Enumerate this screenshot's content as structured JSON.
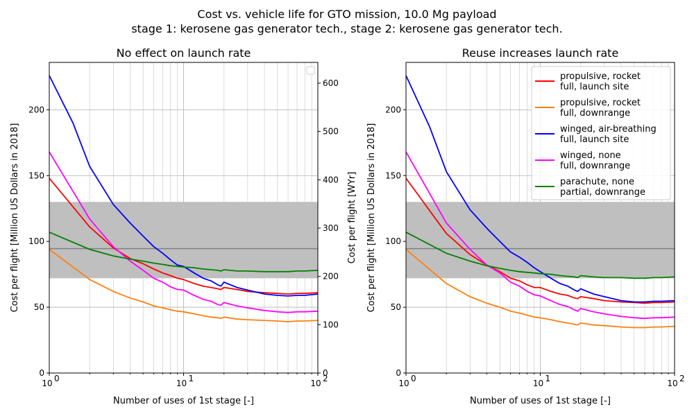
{
  "figure": {
    "title_line1": "Cost vs. vehicle life for GTO mission, 10.0 Mg payload",
    "title_line2": "stage 1: kerosene gas generator tech., stage 2: kerosene gas generator tech."
  },
  "chart_data": [
    {
      "type": "line",
      "title": "No effect on launch rate",
      "xlabel": "Number of uses of 1st stage [-]",
      "ylabel": "Cost per flight [Million US Dollars in 2018]",
      "y2label": "Cost per flight [WYr]",
      "xscale": "log",
      "xlim": [
        1,
        100
      ],
      "ylim": [
        0,
        236
      ],
      "y2lim": [
        0,
        643
      ],
      "yticks": [
        0,
        50,
        100,
        150,
        200
      ],
      "y2ticks": [
        0,
        100,
        200,
        300,
        400,
        500,
        600
      ],
      "xticklabels": [
        "10^0",
        "10^1",
        "10^2"
      ],
      "grid": true,
      "band": {
        "low": 72,
        "high": 130,
        "color": "#bfbfbf"
      },
      "hline": {
        "y": 94.5,
        "color": "#808080"
      },
      "legend": "top-right-empty",
      "series": [
        {
          "color": "#ff0000",
          "x": [
            1,
            2,
            3,
            4,
            5,
            6,
            7,
            8,
            9,
            10,
            12,
            14,
            16,
            18,
            19,
            20,
            25,
            30,
            40,
            50,
            60,
            70,
            80,
            100
          ],
          "y": [
            148,
            111,
            95,
            87,
            83,
            79,
            76,
            74,
            72,
            71,
            68,
            66,
            65,
            64,
            63.5,
            65,
            63.5,
            62,
            61,
            60.5,
            60,
            60.5,
            60.5,
            61
          ]
        },
        {
          "color": "#ff7f0e",
          "x": [
            1,
            2,
            3,
            4,
            5,
            6,
            7,
            8,
            9,
            10,
            12,
            14,
            16,
            18,
            19,
            20,
            25,
            30,
            40,
            50,
            60,
            70,
            80,
            100
          ],
          "y": [
            94,
            71,
            62,
            57,
            54,
            51,
            49.5,
            48,
            47,
            46.5,
            45,
            43.5,
            42.5,
            42,
            41.5,
            42.5,
            41,
            40.5,
            40,
            39.5,
            39,
            39.5,
            39.5,
            40
          ]
        },
        {
          "color": "#0000ff",
          "x": [
            1,
            1.5,
            2,
            3,
            4,
            5,
            6,
            7,
            8,
            9,
            10,
            12,
            14,
            16,
            18,
            19,
            20,
            25,
            30,
            40,
            50,
            60,
            70,
            80,
            100
          ],
          "y": [
            226,
            190,
            157,
            128,
            114,
            104,
            96,
            91,
            86,
            82,
            81,
            76,
            72,
            70,
            67,
            66,
            69,
            65,
            63,
            60,
            59,
            58.5,
            59,
            59,
            60
          ]
        },
        {
          "color": "#ff00ff",
          "x": [
            1,
            2,
            3,
            4,
            5,
            6,
            7,
            8,
            9,
            10,
            12,
            14,
            16,
            18,
            19,
            20,
            25,
            30,
            40,
            50,
            60,
            70,
            80,
            100
          ],
          "y": [
            168,
            117,
            96,
            85,
            78,
            72,
            69,
            65.5,
            63.5,
            63,
            59,
            56,
            54.5,
            52,
            51.5,
            53.5,
            51,
            49.5,
            47.5,
            46.5,
            46,
            46.5,
            46.5,
            47
          ]
        },
        {
          "color": "#008000",
          "x": [
            1,
            2,
            3,
            4,
            5,
            6,
            7,
            8,
            9,
            10,
            12,
            14,
            16,
            18,
            19,
            20,
            25,
            30,
            40,
            50,
            60,
            70,
            80,
            100
          ],
          "y": [
            107,
            94,
            89,
            86.5,
            85,
            83.5,
            82.5,
            81.5,
            81,
            80.5,
            80,
            79,
            78.5,
            78,
            77.5,
            78.5,
            77.5,
            77.5,
            77,
            77,
            77,
            77.5,
            77.5,
            78
          ]
        }
      ]
    },
    {
      "type": "line",
      "title": "Reuse increases launch rate",
      "xlabel": "Number of uses of 1st stage [-]",
      "ylabel": "Cost per flight [Million US Dollars in 2018]",
      "xscale": "log",
      "xlim": [
        1,
        100
      ],
      "ylim": [
        0,
        236
      ],
      "yticks": [
        0,
        50,
        100,
        150,
        200
      ],
      "xticklabels": [
        "10^0",
        "10^1",
        "10^2"
      ],
      "grid": true,
      "band": {
        "low": 72,
        "high": 130,
        "color": "#bfbfbf"
      },
      "hline": {
        "y": 94.5,
        "color": "#808080"
      },
      "legend": "top-right",
      "series": [
        {
          "name": "propulsive, rocket\nfull, launch site",
          "color": "#ff0000",
          "x": [
            1,
            2,
            3,
            4,
            5,
            6,
            7,
            8,
            9,
            10,
            12,
            14,
            16,
            18,
            19,
            20,
            25,
            30,
            40,
            50,
            60,
            70,
            80,
            100
          ],
          "y": [
            148,
            106,
            90,
            82,
            77,
            72,
            70,
            67,
            65,
            65,
            62,
            60,
            59,
            57,
            56.5,
            58,
            56.5,
            55,
            54,
            53.5,
            53,
            53.5,
            53.5,
            54
          ]
        },
        {
          "name": "propulsive, rocket\nfull, downrange",
          "color": "#ff7f0e",
          "x": [
            1,
            2,
            3,
            4,
            5,
            6,
            7,
            8,
            9,
            10,
            12,
            14,
            16,
            18,
            19,
            20,
            25,
            30,
            40,
            50,
            60,
            70,
            80,
            100
          ],
          "y": [
            94,
            68,
            58,
            53,
            50,
            47,
            45.5,
            44,
            42.5,
            42,
            40.5,
            39,
            38,
            37,
            36.5,
            38,
            36.5,
            36,
            35,
            34.5,
            34.5,
            35,
            35,
            35.5
          ]
        },
        {
          "name": "winged, air-breathing\nfull, launch site",
          "color": "#0000ff",
          "x": [
            1,
            1.5,
            2,
            3,
            4,
            5,
            6,
            7,
            8,
            9,
            10,
            12,
            14,
            16,
            18,
            19,
            20,
            25,
            30,
            40,
            50,
            60,
            70,
            80,
            100
          ],
          "y": [
            226,
            187,
            153,
            124,
            110,
            100,
            92,
            88,
            84,
            80,
            77,
            72,
            68,
            66,
            63,
            62,
            64,
            60,
            58,
            55,
            54,
            54,
            54.5,
            54.5,
            55
          ]
        },
        {
          "name": "winged, none\nfull, downrange",
          "color": "#ff00ff",
          "x": [
            1,
            2,
            3,
            4,
            5,
            6,
            7,
            8,
            9,
            10,
            12,
            14,
            16,
            18,
            19,
            20,
            25,
            30,
            40,
            50,
            60,
            70,
            80,
            100
          ],
          "y": [
            168,
            114,
            94,
            82,
            76,
            69,
            66,
            62,
            59.5,
            58.5,
            55,
            52,
            50.5,
            48,
            47,
            49,
            46.5,
            45,
            43,
            42,
            41.5,
            42,
            42,
            42.5
          ]
        },
        {
          "name": "parachute, none\npartial, downrange",
          "color": "#008000",
          "x": [
            1,
            2,
            3,
            4,
            5,
            6,
            7,
            8,
            9,
            10,
            12,
            14,
            16,
            18,
            19,
            20,
            25,
            30,
            40,
            50,
            60,
            70,
            80,
            100
          ],
          "y": [
            107,
            91,
            85,
            81.5,
            79.5,
            78,
            77,
            76.5,
            76,
            75.5,
            75,
            74,
            73.5,
            73,
            72.5,
            74,
            73,
            72.5,
            72.5,
            72,
            72,
            72.5,
            72.5,
            73
          ]
        }
      ]
    }
  ]
}
